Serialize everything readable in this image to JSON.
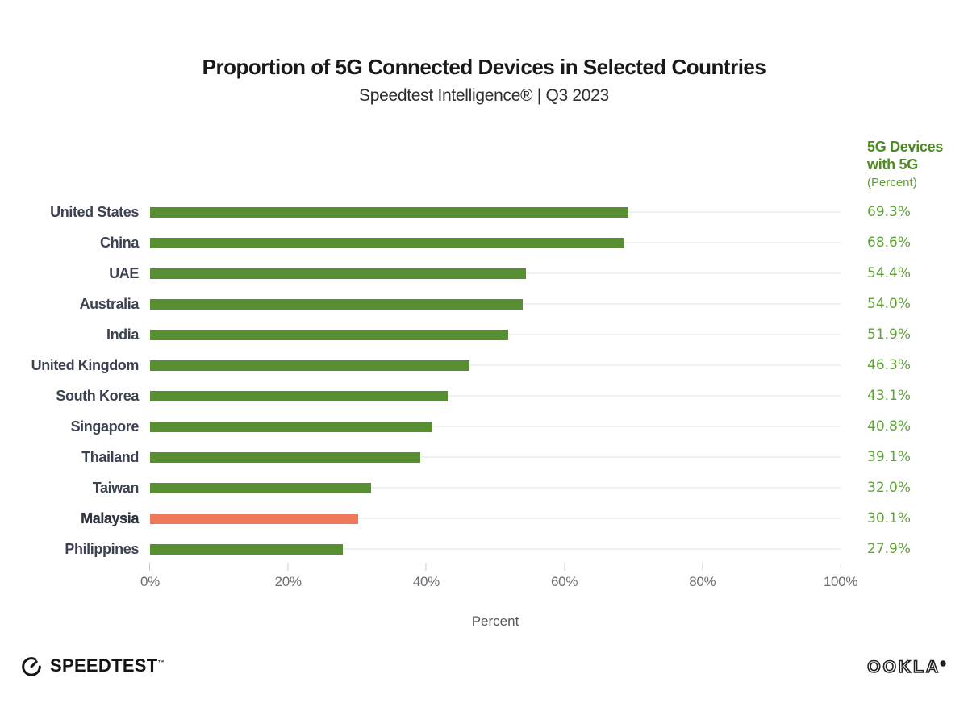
{
  "header": {
    "title": "Proportion of 5G Connected Devices in Selected Countries",
    "subtitle": "Speedtest Intelligence® | Q3 2023"
  },
  "value_column": {
    "header_line1": "5G Devices",
    "header_line2": "with 5G",
    "header_line3": "(Percent)"
  },
  "chart_data": {
    "type": "bar",
    "orientation": "horizontal",
    "title": "Proportion of 5G Connected Devices in Selected Countries",
    "subtitle": "Speedtest Intelligence® | Q3 2023",
    "categories": [
      "United States",
      "China",
      "UAE",
      "Australia",
      "India",
      "United Kingdom",
      "South Korea",
      "Singapore",
      "Thailand",
      "Taiwan",
      "Malaysia",
      "Philippines"
    ],
    "values": [
      69.3,
      68.6,
      54.4,
      54.0,
      51.9,
      46.3,
      43.1,
      40.8,
      39.1,
      32.0,
      30.1,
      27.9
    ],
    "value_labels": [
      "69.3%",
      "68.6%",
      "54.4%",
      "54.0%",
      "51.9%",
      "46.3%",
      "43.1%",
      "40.8%",
      "39.1%",
      "32.0%",
      "30.1%",
      "27.9%"
    ],
    "highlight_category": "Malaysia",
    "xlabel": "Percent",
    "x_ticks": [
      "0%",
      "20%",
      "40%",
      "60%",
      "80%",
      "100%"
    ],
    "xlim": [
      0,
      100
    ],
    "grid": false,
    "legend": "none",
    "colors": {
      "bar": "#578E31",
      "highlight_bar": "#EE7958",
      "value_text": "#61A13C",
      "header_green": "#4C8B26",
      "label_text": "#3B4252",
      "track": "#F0F0F0"
    }
  },
  "footer": {
    "speedtest_logo_text": "SPEEDTEST",
    "speedtest_trademark": "™",
    "ookla_logo_text": "OOKLA",
    "ookla_trademark": "®"
  }
}
